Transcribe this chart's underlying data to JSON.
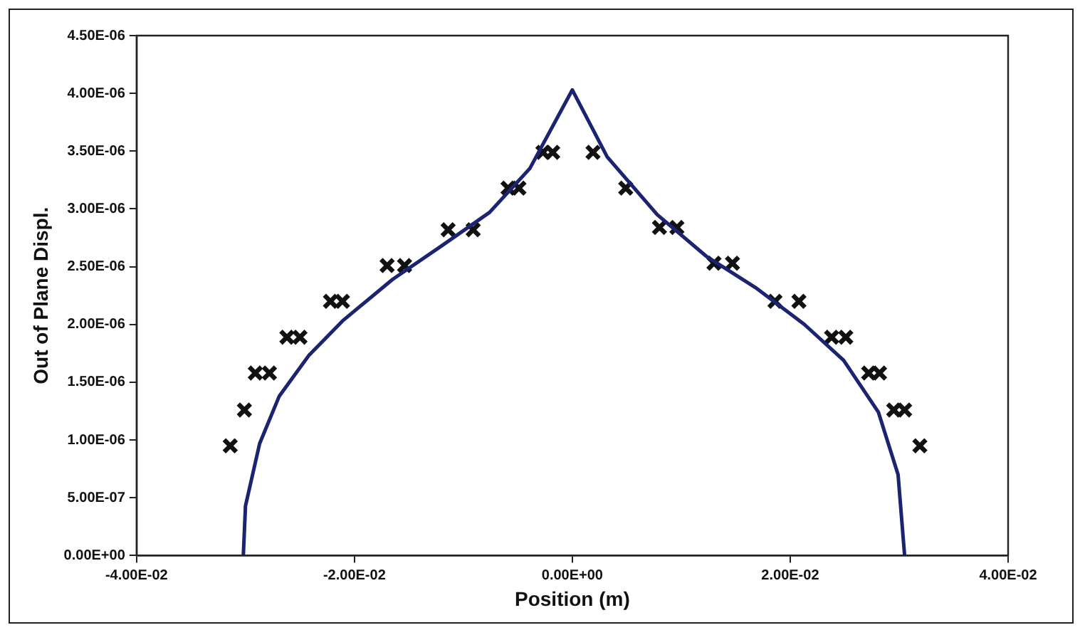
{
  "chart_data": {
    "type": "scatter",
    "xlabel": "Position (m)",
    "ylabel": "Out of Plane Displ.",
    "xlim": [
      -0.04,
      0.04
    ],
    "ylim": [
      0,
      4.5e-06
    ],
    "xticks": [
      {
        "value": -0.04,
        "label": "-4.00E-02"
      },
      {
        "value": -0.02,
        "label": "-2.00E-02"
      },
      {
        "value": 0,
        "label": "0.00E+00"
      },
      {
        "value": 0.02,
        "label": "2.00E-02"
      },
      {
        "value": 0.04,
        "label": "4.00E-02"
      }
    ],
    "yticks": [
      {
        "value": 0,
        "label": "0.00E+00"
      },
      {
        "value": 5e-07,
        "label": "5.00E-07"
      },
      {
        "value": 1e-06,
        "label": "1.00E-06"
      },
      {
        "value": 1.5e-06,
        "label": "1.50E-06"
      },
      {
        "value": 2e-06,
        "label": "2.00E-06"
      },
      {
        "value": 2.5e-06,
        "label": "2.50E-06"
      },
      {
        "value": 3e-06,
        "label": "3.00E-06"
      },
      {
        "value": 3.5e-06,
        "label": "3.50E-06"
      },
      {
        "value": 4e-06,
        "label": "4.00E-06"
      },
      {
        "value": 4.5e-06,
        "label": "4.50E-06"
      }
    ],
    "grid": false,
    "legend": false,
    "series": [
      {
        "type": "line",
        "marker": "none",
        "color": "#1a2470",
        "x": [
          -0.0302,
          -0.03,
          -0.0287,
          -0.0269,
          -0.0242,
          -0.0211,
          -0.0165,
          -0.012,
          -0.0076,
          -0.0039,
          0,
          0.0032,
          0.0078,
          0.0123,
          0.0168,
          0.0213,
          0.0249,
          0.0281,
          0.0299,
          0.0305
        ],
        "values": [
          0,
          4.3e-07,
          9.7e-07,
          1.38e-06,
          1.73e-06,
          2.03e-06,
          2.39e-06,
          2.68e-06,
          2.97e-06,
          3.35e-06,
          4.03e-06,
          3.45e-06,
          2.95e-06,
          2.59e-06,
          2.32e-06,
          2e-06,
          1.69e-06,
          1.24e-06,
          7e-07,
          0
        ]
      },
      {
        "type": "scatter",
        "marker": "cross",
        "color": "#111111",
        "x": [
          -0.0314,
          -0.0301,
          -0.0291,
          -0.0278,
          -0.0262,
          -0.025,
          -0.0222,
          -0.0211,
          -0.017,
          -0.0154,
          -0.0114,
          -0.0091,
          -0.0059,
          -0.0049,
          -0.0027,
          -0.0018,
          0.0019,
          0.0049,
          0.008,
          0.0096,
          0.013,
          0.0147,
          0.0186,
          0.0208,
          0.0238,
          0.0251,
          0.0272,
          0.0282,
          0.0295,
          0.0305,
          0.0319
        ],
        "values": [
          9.5e-07,
          1.26e-06,
          1.58e-06,
          1.58e-06,
          1.89e-06,
          1.89e-06,
          2.2e-06,
          2.2e-06,
          2.51e-06,
          2.51e-06,
          2.82e-06,
          2.82e-06,
          3.18e-06,
          3.18e-06,
          3.49e-06,
          3.49e-06,
          3.49e-06,
          3.18e-06,
          2.84e-06,
          2.84e-06,
          2.53e-06,
          2.53e-06,
          2.2e-06,
          2.2e-06,
          1.89e-06,
          1.89e-06,
          1.58e-06,
          1.58e-06,
          1.26e-06,
          1.26e-06,
          9.5e-07
        ]
      }
    ]
  }
}
